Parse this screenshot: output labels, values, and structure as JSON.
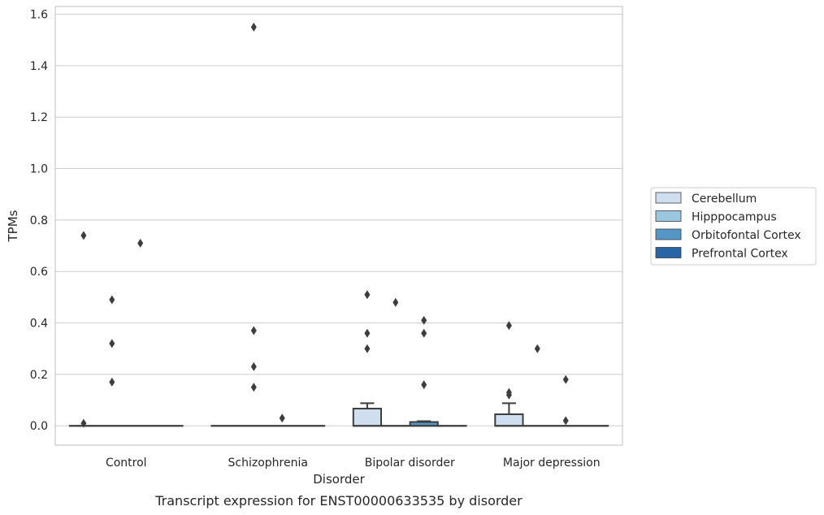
{
  "chart_data": {
    "type": "boxplot",
    "title": "",
    "caption": "Transcript expression for ENST00000633535 by disorder",
    "xlabel": "Disorder",
    "ylabel": "TPMs",
    "ylim": [
      -0.075,
      1.63
    ],
    "yticks": [
      0.0,
      0.2,
      0.4,
      0.6,
      0.8,
      1.0,
      1.2,
      1.4,
      1.6
    ],
    "ytick_labels": [
      "0.0",
      "0.2",
      "0.4",
      "0.6",
      "0.8",
      "1.0",
      "1.2",
      "1.4",
      "1.6"
    ],
    "grid": true,
    "legend_position": "right",
    "categories": [
      "Control",
      "Schizophrenia",
      "Bipolar disorder",
      "Major depression"
    ],
    "series": [
      {
        "name": "Cerebellum",
        "color": "#cfdff0",
        "boxes": [
          {
            "q1": 0,
            "median": 0,
            "q3": 0,
            "whisker_low": 0,
            "whisker_high": 0,
            "outliers": [
              0.74,
              0.01
            ]
          },
          {
            "q1": 0,
            "median": 0,
            "q3": 0,
            "whisker_low": 0,
            "whisker_high": 0,
            "outliers": []
          },
          {
            "q1": 0,
            "median": 0,
            "q3": 0.067,
            "whisker_low": 0,
            "whisker_high": 0.088,
            "outliers": [
              0.51,
              0.36,
              0.3
            ]
          },
          {
            "q1": 0,
            "median": 0,
            "q3": 0.045,
            "whisker_low": 0,
            "whisker_high": 0.088,
            "outliers": [
              0.39,
              0.13,
              0.12
            ]
          }
        ]
      },
      {
        "name": "Hipppocampus",
        "color": "#9cc6df",
        "boxes": [
          {
            "q1": 0,
            "median": 0,
            "q3": 0,
            "whisker_low": 0,
            "whisker_high": 0,
            "outliers": [
              0.49,
              0.32,
              0.17
            ]
          },
          {
            "q1": 0,
            "median": 0,
            "q3": 0,
            "whisker_low": 0,
            "whisker_high": 0,
            "outliers": [
              1.55,
              0.37,
              0.23,
              0.15
            ]
          },
          {
            "q1": 0,
            "median": 0,
            "q3": 0,
            "whisker_low": 0,
            "whisker_high": 0,
            "outliers": [
              0.48
            ]
          },
          {
            "q1": 0,
            "median": 0,
            "q3": 0,
            "whisker_low": 0,
            "whisker_high": 0,
            "outliers": [
              0.3
            ]
          }
        ]
      },
      {
        "name": "Orbitofontal Cortex",
        "color": "#5497c7",
        "boxes": [
          {
            "q1": 0,
            "median": 0,
            "q3": 0,
            "whisker_low": 0,
            "whisker_high": 0,
            "outliers": [
              0.71
            ]
          },
          {
            "q1": 0,
            "median": 0,
            "q3": 0,
            "whisker_low": 0,
            "whisker_high": 0,
            "outliers": [
              0.03
            ]
          },
          {
            "q1": 0,
            "median": 0,
            "q3": 0.015,
            "whisker_low": 0,
            "whisker_high": 0.018,
            "outliers": [
              0.41,
              0.36,
              0.16
            ]
          },
          {
            "q1": 0,
            "median": 0,
            "q3": 0,
            "whisker_low": 0,
            "whisker_high": 0,
            "outliers": [
              0.18,
              0.02
            ]
          }
        ]
      },
      {
        "name": "Prefrontal Cortex",
        "color": "#2765a5",
        "boxes": [
          {
            "q1": 0,
            "median": 0,
            "q3": 0,
            "whisker_low": 0,
            "whisker_high": 0,
            "outliers": []
          },
          {
            "q1": 0,
            "median": 0,
            "q3": 0,
            "whisker_low": 0,
            "whisker_high": 0,
            "outliers": []
          },
          {
            "q1": 0,
            "median": 0,
            "q3": 0,
            "whisker_low": 0,
            "whisker_high": 0,
            "outliers": []
          },
          {
            "q1": 0,
            "median": 0,
            "q3": 0,
            "whisker_low": 0,
            "whisker_high": 0,
            "outliers": []
          }
        ]
      }
    ]
  }
}
